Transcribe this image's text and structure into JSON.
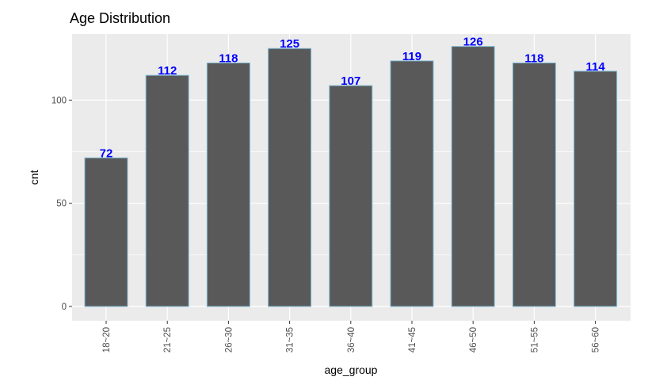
{
  "chart_data": {
    "type": "bar",
    "title": "Age Distribution",
    "xlabel": "age_group",
    "ylabel": "cnt",
    "categories": [
      "18~20",
      "21~25",
      "26~30",
      "31~35",
      "36~40",
      "41~45",
      "46~50",
      "51~55",
      "56~60"
    ],
    "values": [
      72,
      112,
      118,
      125,
      107,
      119,
      126,
      118,
      114
    ],
    "ylim": [
      0,
      132
    ],
    "yticks": [
      0,
      50,
      100
    ],
    "grid": true,
    "legend": "none",
    "colors": {
      "panel_background": "#ebebeb",
      "gridline": "#ffffff",
      "bar_fill": "#595959",
      "bar_outline": "#7fb8d4",
      "data_label": "#0000ff",
      "tick_mark": "#333333"
    }
  }
}
